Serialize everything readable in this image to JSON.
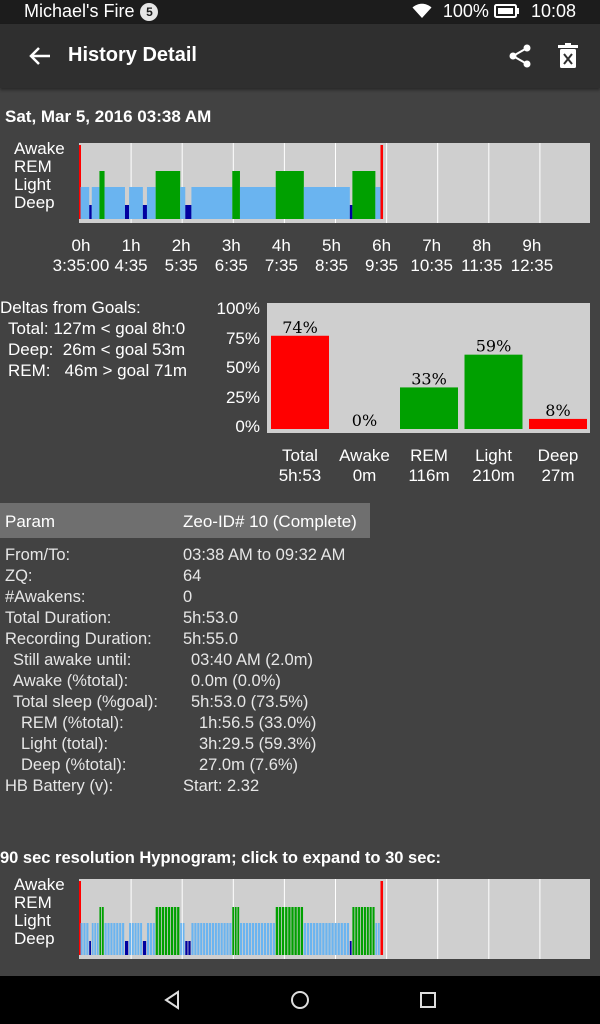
{
  "status": {
    "carrier": "Michael's Fire",
    "notif_count": "5",
    "battery": "100%",
    "time": "10:08"
  },
  "appbar": {
    "title": "History Detail"
  },
  "session": {
    "date": "Sat, Mar 5, 2016 03:38 AM"
  },
  "hypnogram": {
    "stages": [
      "Awake",
      "REM",
      "Light",
      "Deep"
    ],
    "hours": [
      {
        "h": "0h",
        "t": "3:35:00"
      },
      {
        "h": "1h",
        "t": "4:35"
      },
      {
        "h": "2h",
        "t": "5:35"
      },
      {
        "h": "3h",
        "t": "6:35"
      },
      {
        "h": "4h",
        "t": "7:35"
      },
      {
        "h": "5h",
        "t": "8:35"
      },
      {
        "h": "6h",
        "t": "9:35"
      },
      {
        "h": "7h",
        "t": "10:35"
      },
      {
        "h": "8h",
        "t": "11:35"
      },
      {
        "h": "9h",
        "t": "12:35"
      }
    ],
    "span_hours": 10,
    "segments": [
      {
        "stage": "Awake",
        "start": 0.0,
        "end": 0.03
      },
      {
        "stage": "Light",
        "start": 0.03,
        "end": 0.2
      },
      {
        "stage": "Deep",
        "start": 0.2,
        "end": 0.25
      },
      {
        "stage": "Light",
        "start": 0.25,
        "end": 0.4
      },
      {
        "stage": "REM",
        "start": 0.4,
        "end": 0.5
      },
      {
        "stage": "Light",
        "start": 0.5,
        "end": 0.9
      },
      {
        "stage": "Deep",
        "start": 0.9,
        "end": 0.98
      },
      {
        "stage": "Light",
        "start": 0.98,
        "end": 1.25
      },
      {
        "stage": "Deep",
        "start": 1.25,
        "end": 1.33
      },
      {
        "stage": "Light",
        "start": 1.33,
        "end": 1.5
      },
      {
        "stage": "REM",
        "start": 1.5,
        "end": 1.98
      },
      {
        "stage": "Light",
        "start": 1.98,
        "end": 2.08
      },
      {
        "stage": "Deep",
        "start": 2.08,
        "end": 2.2
      },
      {
        "stage": "Light",
        "start": 2.2,
        "end": 3.0
      },
      {
        "stage": "REM",
        "start": 3.0,
        "end": 3.15
      },
      {
        "stage": "Light",
        "start": 3.15,
        "end": 3.85
      },
      {
        "stage": "REM",
        "start": 3.85,
        "end": 4.4
      },
      {
        "stage": "Light",
        "start": 4.4,
        "end": 5.3
      },
      {
        "stage": "Deep",
        "start": 5.3,
        "end": 5.35
      },
      {
        "stage": "Light",
        "start": 5.35,
        "end": 5.35
      },
      {
        "stage": "REM",
        "start": 5.35,
        "end": 5.8
      },
      {
        "stage": "Light",
        "start": 5.8,
        "end": 5.9
      },
      {
        "stage": "Awake",
        "start": 5.9,
        "end": 5.95
      }
    ],
    "colors": {
      "Awake": "#ff0000",
      "REM": "#00a000",
      "Light": "#6ab4f0",
      "Deep": "#0000a0"
    }
  },
  "deltas": {
    "title": "Deltas from Goals:",
    "rows": [
      "Total: 127m < goal 8h:0",
      "Deep:  26m < goal 53m",
      "REM:   46m > goal 71m"
    ]
  },
  "chart_data": {
    "type": "bar",
    "categories": [
      "Total",
      "Awake",
      "REM",
      "Light",
      "Deep"
    ],
    "sublabels": [
      "5h:53",
      "0m",
      "116m",
      "210m",
      "27m"
    ],
    "values": [
      74,
      0,
      33,
      59,
      8
    ],
    "value_labels": [
      "74%",
      "0%",
      "33%",
      "59%",
      "8%"
    ],
    "colors": [
      "#ff0000",
      "#00a000",
      "#00a000",
      "#00a000",
      "#ff0000"
    ],
    "yticks": [
      "100%",
      "75%",
      "50%",
      "25%",
      "0%"
    ],
    "ylim": [
      0,
      100
    ]
  },
  "table": {
    "header": {
      "param": "Param",
      "value": "Zeo-ID# 10 (Complete)"
    },
    "rows": [
      {
        "k": "From/To:",
        "v": "03:38 AM to 09:32 AM",
        "indent": 0
      },
      {
        "k": "ZQ:",
        "v": "64",
        "indent": 0
      },
      {
        "k": "#Awakens:",
        "v": "0",
        "indent": 0
      },
      {
        "k": "Total Duration:",
        "v": "5h:53.0",
        "indent": 0
      },
      {
        "k": "Recording Duration:",
        "v": "5h:55.0",
        "indent": 0
      },
      {
        "k": "Still awake until:",
        "v": "03:40 AM (2.0m)",
        "indent": 1
      },
      {
        "k": "Awake (%total):",
        "v": "0.0m (0.0%)",
        "indent": 1
      },
      {
        "k": "Total sleep (%goal):",
        "v": "5h:53.0 (73.5%)",
        "indent": 1
      },
      {
        "k": "REM (%total):",
        "v": "1h:56.5 (33.0%)",
        "indent": 2
      },
      {
        "k": "Light (total):",
        "v": "3h:29.5 (59.3%)",
        "indent": 2
      },
      {
        "k": "Deep (%total):",
        "v": "27.0m (7.6%)",
        "indent": 2
      },
      {
        "k": "HB Battery (v):",
        "v": "Start: 2.32",
        "indent": 0
      }
    ]
  },
  "hypnogram2": {
    "title": "90 sec resolution Hypnogram; click to expand to 30 sec:"
  }
}
